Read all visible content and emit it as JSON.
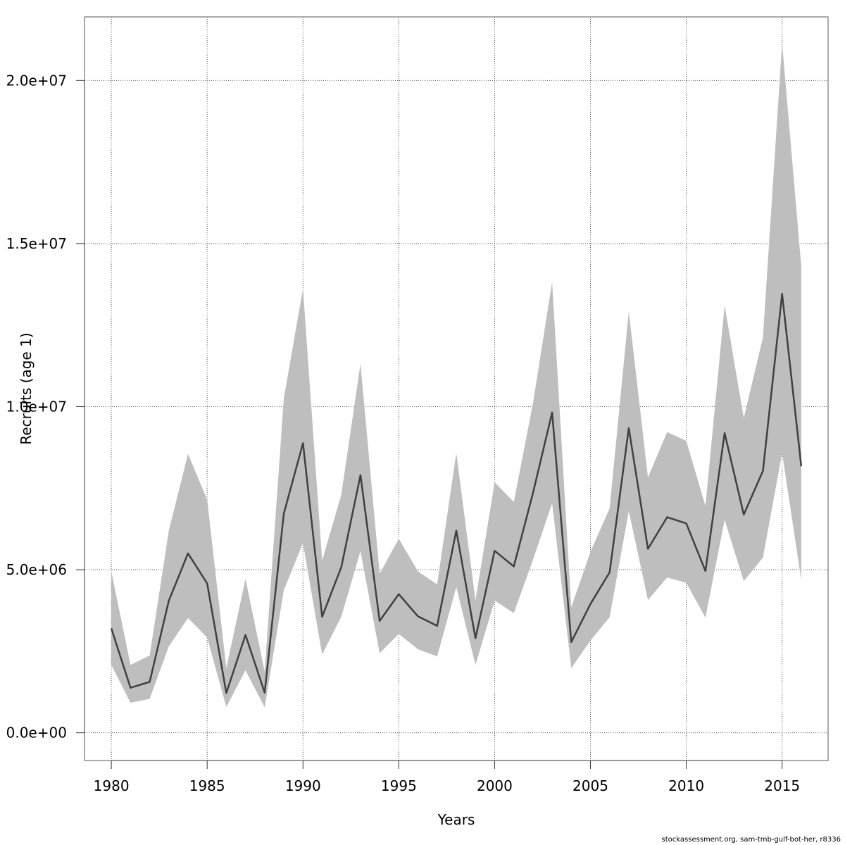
{
  "chart_data": {
    "type": "line",
    "title": "",
    "xlabel": "Years",
    "ylabel": "Recruits (age 1)",
    "xlim": [
      1978.6,
      2017.4
    ],
    "ylim": [
      -850000,
      21950000
    ],
    "x_ticks": [
      1980,
      1985,
      1990,
      1995,
      2000,
      2005,
      2010,
      2015
    ],
    "x_tick_labels": [
      "1980",
      "1985",
      "1990",
      "1995",
      "2000",
      "2005",
      "2010",
      "2015"
    ],
    "y_ticks": [
      0,
      5000000,
      10000000,
      15000000,
      20000000
    ],
    "y_tick_labels": [
      "0.0e+00",
      "5.0e+06",
      "1.0e+07",
      "1.5e+07",
      "2.0e+07"
    ],
    "grid": true,
    "line_color": "#404040",
    "band_color": "#bebebe",
    "x": [
      1980,
      1981,
      1982,
      1983,
      1984,
      1985,
      1986,
      1987,
      1988,
      1989,
      1990,
      1991,
      1992,
      1993,
      1994,
      1995,
      1996,
      1997,
      1998,
      1999,
      2000,
      2001,
      2002,
      2003,
      2004,
      2005,
      2006,
      2007,
      2008,
      2009,
      2010,
      2011,
      2012,
      2013,
      2014,
      2015,
      2016
    ],
    "series": [
      {
        "values": [
          3200000,
          1380000,
          1560000,
          4050000,
          5500000,
          4580000,
          1220000,
          3000000,
          1230000,
          6720000,
          8880000,
          3560000,
          5080000,
          7900000,
          3430000,
          4250000,
          3570000,
          3280000,
          6200000,
          2900000,
          5580000,
          5100000,
          7350000,
          9820000,
          2780000,
          3950000,
          4920000,
          9340000,
          5640000,
          6610000,
          6420000,
          4960000,
          9190000,
          6690000,
          8030000,
          13460000,
          8170000
        ]
      }
    ],
    "upper": [
      4950000,
      2080000,
      2370000,
      6200000,
      8550000,
      7150000,
      1980000,
      4720000,
      1880000,
      10250000,
      13620000,
      5280000,
      7300000,
      11320000,
      4880000,
      5950000,
      4950000,
      4550000,
      8580000,
      4060000,
      7680000,
      7080000,
      10100000,
      13820000,
      3850000,
      5550000,
      6880000,
      12920000,
      7830000,
      9220000,
      8950000,
      6950000,
      13100000,
      9650000,
      12120000,
      21150000,
      14300000
    ],
    "lower": [
      2080000,
      920000,
      1040000,
      2650000,
      3520000,
      2920000,
      790000,
      1920000,
      780000,
      4370000,
      5820000,
      2400000,
      3560000,
      5570000,
      2440000,
      3030000,
      2560000,
      2340000,
      4470000,
      2080000,
      4050000,
      3670000,
      5300000,
      7040000,
      1980000,
      2830000,
      3540000,
      6800000,
      4070000,
      4760000,
      4600000,
      3530000,
      6530000,
      4650000,
      5370000,
      8580000,
      4680000
    ]
  },
  "footer": {
    "credit": "stockassessment.org, sam-tmb-gulf-bot-her, r8336"
  }
}
